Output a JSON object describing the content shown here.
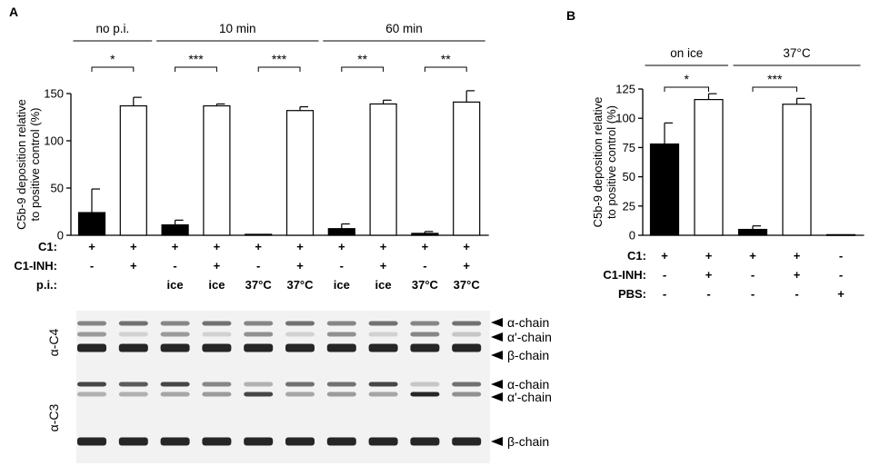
{
  "panels": {
    "a_label": "A",
    "b_label": "B"
  },
  "colors": {
    "bar_filled": "#000000",
    "bar_open": "#ffffff",
    "axis": "#000000",
    "blot_background": "#f2f2f2",
    "band": "#1a1a1a"
  },
  "chart_data": [
    {
      "type": "bar",
      "panel": "A",
      "title": "",
      "ylabel": "C5b-9 deposition relative\nto positive control (%)",
      "ylim": [
        0,
        150
      ],
      "yticks": [
        0,
        50,
        100,
        150
      ],
      "grid": false,
      "categories": [
        "1",
        "2",
        "3",
        "4",
        "5",
        "6",
        "7",
        "8",
        "9",
        "10"
      ],
      "values": [
        24,
        137,
        11,
        137,
        1,
        132,
        7,
        139,
        2,
        141
      ],
      "errors": [
        25,
        9,
        5,
        2,
        0,
        4,
        5,
        4,
        2,
        12
      ],
      "fills": [
        "filled",
        "open",
        "filled",
        "open",
        "filled",
        "open",
        "filled",
        "open",
        "filled",
        "open"
      ],
      "group_headers": [
        {
          "label": "no p.i.",
          "from": 0,
          "to": 1
        },
        {
          "label": "10 min",
          "from": 2,
          "to": 5
        },
        {
          "label": "60 min",
          "from": 6,
          "to": 9
        }
      ],
      "significance": [
        {
          "label": "*",
          "from": 0,
          "to": 1
        },
        {
          "label": "***",
          "from": 2,
          "to": 3
        },
        {
          "label": "***",
          "from": 4,
          "to": 5
        },
        {
          "label": "**",
          "from": 6,
          "to": 7
        },
        {
          "label": "**",
          "from": 8,
          "to": 9
        }
      ],
      "condition_rows": [
        {
          "label": "C1:",
          "values": [
            "+",
            "+",
            "+",
            "+",
            "+",
            "+",
            "+",
            "+",
            "+",
            "+"
          ]
        },
        {
          "label": "C1-INH:",
          "values": [
            "-",
            "+",
            "-",
            "+",
            "-",
            "+",
            "-",
            "+",
            "-",
            "+"
          ]
        },
        {
          "label": "p.i.:",
          "values": [
            "",
            "",
            "ice",
            "ice",
            "37°C",
            "37°C",
            "ice",
            "ice",
            "37°C",
            "37°C"
          ]
        }
      ]
    },
    {
      "type": "bar",
      "panel": "B",
      "title": "",
      "ylabel": "C5b-9 deposition relative\nto positive control (%)",
      "ylim": [
        0,
        125
      ],
      "yticks": [
        0,
        25,
        50,
        75,
        100,
        125
      ],
      "grid": false,
      "categories": [
        "1",
        "2",
        "3",
        "4",
        "5"
      ],
      "values": [
        78,
        116,
        5,
        112,
        0.5
      ],
      "errors": [
        18,
        5,
        3,
        5,
        0
      ],
      "fills": [
        "filled",
        "open",
        "filled",
        "open",
        "filled"
      ],
      "group_headers": [
        {
          "label": "on ice",
          "from": 0,
          "to": 1
        },
        {
          "label": "37°C",
          "from": 2,
          "to": 4
        }
      ],
      "significance": [
        {
          "label": "*",
          "from": 0,
          "to": 1
        },
        {
          "label": "***",
          "from": 2,
          "to": 3
        }
      ],
      "condition_rows": [
        {
          "label": "C1:",
          "values": [
            "+",
            "+",
            "+",
            "+",
            "-"
          ]
        },
        {
          "label": "C1-INH:",
          "values": [
            "-",
            "+",
            "-",
            "+",
            "-"
          ]
        },
        {
          "label": "PBS:",
          "values": [
            "-",
            "-",
            "-",
            "-",
            "+"
          ]
        }
      ]
    }
  ],
  "blots": [
    {
      "label": "α-C4",
      "chains": [
        "α-chain",
        "α'-chain",
        "β-chain"
      ],
      "band_intensity": [
        [
          0.5,
          0.6,
          0.5,
          0.6,
          0.5,
          0.6,
          0.5,
          0.6,
          0.5,
          0.6
        ],
        [
          0.4,
          0.15,
          0.4,
          0.15,
          0.45,
          0.15,
          0.45,
          0.15,
          0.5,
          0.2
        ],
        [
          0.95,
          0.95,
          0.95,
          0.95,
          0.95,
          0.95,
          0.95,
          0.95,
          0.95,
          0.95
        ]
      ]
    },
    {
      "label": "α-C3",
      "chains": [
        "α-chain",
        "α'-chain",
        "β-chain"
      ],
      "band_intensity": [
        [
          0.8,
          0.7,
          0.8,
          0.5,
          0.3,
          0.6,
          0.6,
          0.8,
          0.2,
          0.6
        ],
        [
          0.3,
          0.3,
          0.35,
          0.4,
          0.8,
          0.35,
          0.4,
          0.35,
          0.95,
          0.45
        ],
        [
          0.95,
          0.95,
          0.95,
          0.95,
          0.95,
          0.95,
          0.95,
          0.95,
          0.95,
          0.95
        ]
      ]
    }
  ]
}
